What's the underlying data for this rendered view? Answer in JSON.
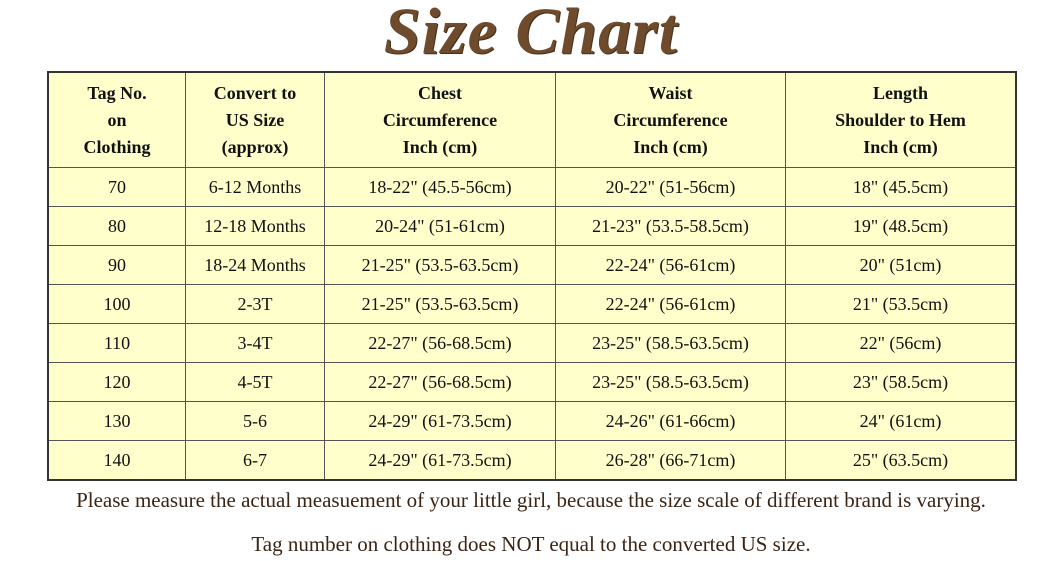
{
  "title": "Size Chart",
  "headers": [
    [
      "Tag No.",
      "on",
      "Clothing"
    ],
    [
      "Convert to",
      "US Size",
      "(approx)"
    ],
    [
      "Chest",
      "Circumference",
      "Inch (cm)"
    ],
    [
      "Waist",
      "Circumference",
      "Inch (cm)"
    ],
    [
      "Length",
      "Shoulder to Hem",
      "Inch (cm)"
    ]
  ],
  "rows": [
    [
      "70",
      "6-12 Months",
      "18-22\" (45.5-56cm)",
      "20-22\" (51-56cm)",
      "18\" (45.5cm)"
    ],
    [
      "80",
      "12-18 Months",
      "20-24\" (51-61cm)",
      "21-23\" (53.5-58.5cm)",
      "19\" (48.5cm)"
    ],
    [
      "90",
      "18-24 Months",
      "21-25\" (53.5-63.5cm)",
      "22-24\" (56-61cm)",
      "20\" (51cm)"
    ],
    [
      "100",
      "2-3T",
      "21-25\" (53.5-63.5cm)",
      "22-24\" (56-61cm)",
      "21\" (53.5cm)"
    ],
    [
      "110",
      "3-4T",
      "22-27\" (56-68.5cm)",
      "23-25\" (58.5-63.5cm)",
      "22\" (56cm)"
    ],
    [
      "120",
      "4-5T",
      "22-27\" (56-68.5cm)",
      "23-25\" (58.5-63.5cm)",
      "23\" (58.5cm)"
    ],
    [
      "130",
      "5-6",
      "24-29\" (61-73.5cm)",
      "24-26\" (61-66cm)",
      "24\" (61cm)"
    ],
    [
      "140",
      "6-7",
      "24-29\" (61-73.5cm)",
      "26-28\" (66-71cm)",
      "25\" (63.5cm)"
    ]
  ],
  "notes": [
    "Please measure the actual measuement of your little girl, because the size scale of different brand is varying.",
    "Tag number on clothing does NOT equal to the converted US size."
  ],
  "colors": {
    "title": "#6e4b2c",
    "cell_background": "#ffffcc",
    "note_text": "#3a2414"
  }
}
